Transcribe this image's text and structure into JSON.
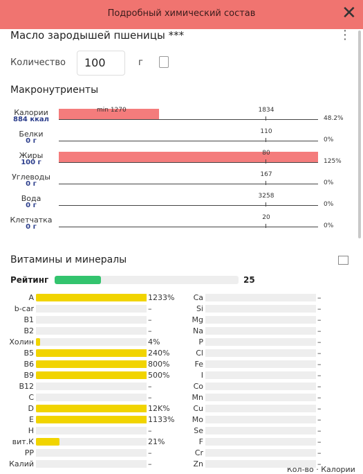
{
  "header": {
    "title": "Подробный химический состав"
  },
  "product": {
    "name": "Масло зародышей пшеницы ***"
  },
  "quantity": {
    "label": "Количество",
    "value": "100",
    "unit": "г"
  },
  "macros": {
    "title": "Макронутриенты",
    "rows": [
      {
        "name": "Калории",
        "amount": "884 ккал",
        "norm": "1834",
        "min": "min 1270",
        "percent": 48.2,
        "percent_label": "48.2%"
      },
      {
        "name": "Белки",
        "amount": "0 г",
        "norm": "110",
        "percent": 0,
        "percent_label": "0%"
      },
      {
        "name": "Жиры",
        "amount": "100 г",
        "norm": "80",
        "percent": 125,
        "percent_label": "125%"
      },
      {
        "name": "Углеводы",
        "amount": "0 г",
        "norm": "167",
        "percent": 0,
        "percent_label": "0%"
      },
      {
        "name": "Вода",
        "amount": "0 г",
        "norm": "3258",
        "percent": 0,
        "percent_label": "0%"
      },
      {
        "name": "Клетчатка",
        "amount": "0 г",
        "norm": "20",
        "percent": 0,
        "percent_label": "0%"
      }
    ]
  },
  "vitamins": {
    "title": "Витамины и минералы",
    "rating_label": "Рейтинг",
    "rating": 25,
    "left": [
      {
        "name": "A",
        "value": 1233,
        "label": "1233%"
      },
      {
        "name": "b-car",
        "value": null,
        "label": "–"
      },
      {
        "name": "B1",
        "value": null,
        "label": "–"
      },
      {
        "name": "B2",
        "value": null,
        "label": "–"
      },
      {
        "name": "Холин",
        "value": 4,
        "label": "4%"
      },
      {
        "name": "B5",
        "value": 240,
        "label": "240%"
      },
      {
        "name": "B6",
        "value": 800,
        "label": "800%"
      },
      {
        "name": "B9",
        "value": 500,
        "label": "500%"
      },
      {
        "name": "B12",
        "value": null,
        "label": "–"
      },
      {
        "name": "C",
        "value": null,
        "label": "–"
      },
      {
        "name": "D",
        "value": 12000,
        "label": "12K%"
      },
      {
        "name": "E",
        "value": 1133,
        "label": "1133%"
      },
      {
        "name": "H",
        "value": null,
        "label": "–"
      },
      {
        "name": "вит.К",
        "value": 21,
        "label": "21%"
      },
      {
        "name": "PP",
        "value": null,
        "label": "–"
      },
      {
        "name": "Калий",
        "value": null,
        "label": "–"
      }
    ],
    "right": [
      {
        "name": "Ca",
        "value": null,
        "label": "–"
      },
      {
        "name": "Si",
        "value": null,
        "label": "–"
      },
      {
        "name": "Mg",
        "value": null,
        "label": "–"
      },
      {
        "name": "Na",
        "value": null,
        "label": "–"
      },
      {
        "name": "P",
        "value": null,
        "label": "–"
      },
      {
        "name": "Cl",
        "value": null,
        "label": "–"
      },
      {
        "name": "Fe",
        "value": null,
        "label": "–"
      },
      {
        "name": "I",
        "value": null,
        "label": "–"
      },
      {
        "name": "Co",
        "value": null,
        "label": "–"
      },
      {
        "name": "Mn",
        "value": null,
        "label": "–"
      },
      {
        "name": "Cu",
        "value": null,
        "label": "–"
      },
      {
        "name": "Mo",
        "value": null,
        "label": "–"
      },
      {
        "name": "Se",
        "value": null,
        "label": "–"
      },
      {
        "name": "F",
        "value": null,
        "label": "–"
      },
      {
        "name": "Cr",
        "value": null,
        "label": "–"
      },
      {
        "name": "Zn",
        "value": null,
        "label": "–"
      }
    ]
  },
  "footer": {
    "text": "Кол-во · Калории"
  }
}
